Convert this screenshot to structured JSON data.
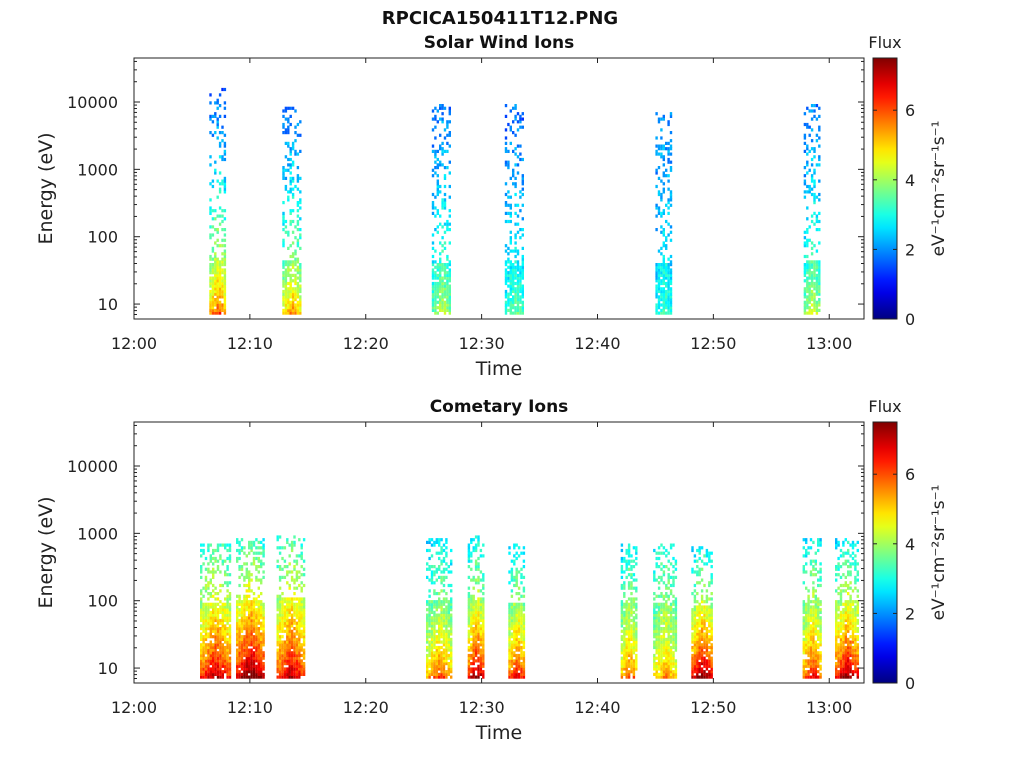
{
  "figure": {
    "title": "RPCICA150411T12.PNG"
  },
  "chart_data": [
    {
      "type": "heatmap",
      "title": "Solar Wind Ions",
      "xlabel": "Time",
      "ylabel": "Energy (eV)",
      "x_ticks": [
        "12:00",
        "12:10",
        "12:20",
        "12:30",
        "12:40",
        "12:50",
        "13:00"
      ],
      "x_range_minutes": [
        0,
        63
      ],
      "y_scale": "log",
      "y_ticks": [
        "10",
        "100",
        "1000",
        "10000"
      ],
      "y_range": [
        6,
        45000
      ],
      "colorbar": {
        "label": "Flux",
        "units": "eV⁻¹cm⁻²sr⁻¹s⁻¹",
        "range": [
          0,
          7.5
        ],
        "ticks": [
          "0",
          "2",
          "4",
          "6"
        ]
      },
      "bursts": [
        {
          "t": 7.2,
          "width": 1.4,
          "low_energy_flux": 5.5,
          "high_energy_flux": 1.5,
          "e_top": 15000
        },
        {
          "t": 13.6,
          "width": 1.6,
          "low_energy_flux": 5.0,
          "high_energy_flux": 1.6,
          "e_top": 8000
        },
        {
          "t": 26.5,
          "width": 1.6,
          "low_energy_flux": 3.8,
          "high_energy_flux": 1.7,
          "e_top": 9000
        },
        {
          "t": 32.8,
          "width": 1.6,
          "low_energy_flux": 3.3,
          "high_energy_flux": 1.6,
          "e_top": 9000
        },
        {
          "t": 45.7,
          "width": 1.4,
          "low_energy_flux": 3.0,
          "high_energy_flux": 1.8,
          "e_top": 7000
        },
        {
          "t": 58.5,
          "width": 1.4,
          "low_energy_flux": 4.0,
          "high_energy_flux": 1.7,
          "e_top": 9000
        }
      ]
    },
    {
      "type": "heatmap",
      "title": "Cometary Ions",
      "xlabel": "Time",
      "ylabel": "Energy (eV)",
      "x_ticks": [
        "12:00",
        "12:10",
        "12:20",
        "12:30",
        "12:40",
        "12:50",
        "13:00"
      ],
      "x_range_minutes": [
        0,
        63
      ],
      "y_scale": "log",
      "y_ticks": [
        "10",
        "100",
        "1000",
        "10000"
      ],
      "y_range": [
        6,
        45000
      ],
      "colorbar": {
        "label": "Flux",
        "units": "eV⁻¹cm⁻²sr⁻¹s⁻¹",
        "range": [
          0,
          7.5
        ],
        "ticks": [
          "0",
          "2",
          "4",
          "6"
        ]
      },
      "bursts": [
        {
          "t": 7.0,
          "width": 2.6,
          "low_energy_flux": 6.5,
          "high_energy_flux": 3.0,
          "e_top": 700
        },
        {
          "t": 10.0,
          "width": 2.4,
          "low_energy_flux": 7.2,
          "high_energy_flux": 3.0,
          "e_top": 800
        },
        {
          "t": 13.5,
          "width": 2.4,
          "low_energy_flux": 6.5,
          "high_energy_flux": 3.0,
          "e_top": 900
        },
        {
          "t": 26.3,
          "width": 2.2,
          "low_energy_flux": 5.5,
          "high_energy_flux": 2.5,
          "e_top": 800
        },
        {
          "t": 29.5,
          "width": 1.4,
          "low_energy_flux": 6.8,
          "high_energy_flux": 2.5,
          "e_top": 900
        },
        {
          "t": 33.0,
          "width": 1.4,
          "low_energy_flux": 6.2,
          "high_energy_flux": 2.5,
          "e_top": 700
        },
        {
          "t": 42.7,
          "width": 1.4,
          "low_energy_flux": 5.5,
          "high_energy_flux": 2.6,
          "e_top": 700
        },
        {
          "t": 45.8,
          "width": 2.0,
          "low_energy_flux": 5.0,
          "high_energy_flux": 2.8,
          "e_top": 700
        },
        {
          "t": 49.0,
          "width": 1.8,
          "low_energy_flux": 7.0,
          "high_energy_flux": 2.6,
          "e_top": 600
        },
        {
          "t": 58.5,
          "width": 1.6,
          "low_energy_flux": 6.0,
          "high_energy_flux": 2.6,
          "e_top": 800
        },
        {
          "t": 61.5,
          "width": 2.0,
          "low_energy_flux": 6.8,
          "high_energy_flux": 2.6,
          "e_top": 800
        }
      ]
    }
  ]
}
